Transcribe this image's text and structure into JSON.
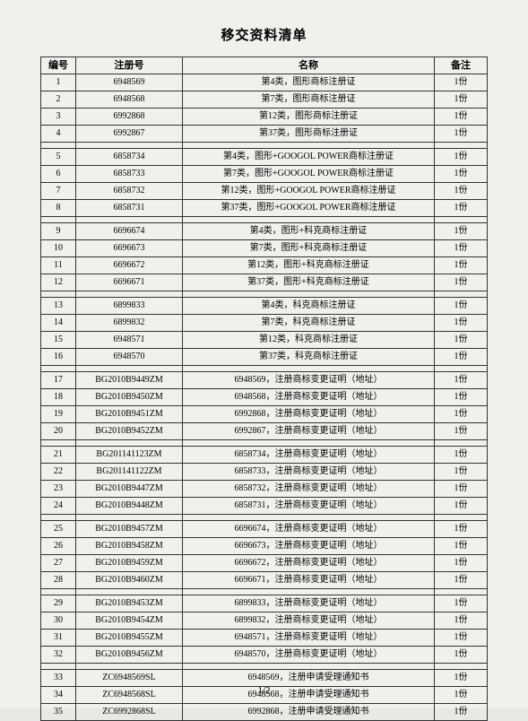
{
  "title": "移交资料清单",
  "headers": {
    "idx": "编号",
    "reg": "注册号",
    "name": "名称",
    "note": "备注"
  },
  "groups": [
    [
      {
        "idx": "1",
        "reg": "6948569",
        "name": "第4类，图形商标注册证",
        "note": "1份"
      },
      {
        "idx": "2",
        "reg": "6948568",
        "name": "第7类，图形商标注册证",
        "note": "1份"
      },
      {
        "idx": "3",
        "reg": "6992868",
        "name": "第12类，图形商标注册证",
        "note": "1份"
      },
      {
        "idx": "4",
        "reg": "6992867",
        "name": "第37类，图形商标注册证",
        "note": "1份"
      }
    ],
    [
      {
        "idx": "5",
        "reg": "6858734",
        "name": "第4类，图形+GOOGOL POWER商标注册证",
        "note": "1份"
      },
      {
        "idx": "6",
        "reg": "6858733",
        "name": "第7类，图形+GOOGOL POWER商标注册证",
        "note": "1份"
      },
      {
        "idx": "7",
        "reg": "6858732",
        "name": "第12类，图形+GOOGOL POWER商标注册证",
        "note": "1份"
      },
      {
        "idx": "8",
        "reg": "6858731",
        "name": "第37类，图形+GOOGOL POWER商标注册证",
        "note": "1份"
      }
    ],
    [
      {
        "idx": "9",
        "reg": "6696674",
        "name": "第4类，图形+科克商标注册证",
        "note": "1份"
      },
      {
        "idx": "10",
        "reg": "6696673",
        "name": "第7类，图形+科克商标注册证",
        "note": "1份"
      },
      {
        "idx": "11",
        "reg": "6696672",
        "name": "第12类，图形+科克商标注册证",
        "note": "1份"
      },
      {
        "idx": "12",
        "reg": "6696671",
        "name": "第37类，图形+科克商标注册证",
        "note": "1份"
      }
    ],
    [
      {
        "idx": "13",
        "reg": "6899833",
        "name": "第4类，科克商标注册证",
        "note": "1份"
      },
      {
        "idx": "14",
        "reg": "6899832",
        "name": "第7类，科克商标注册证",
        "note": "1份"
      },
      {
        "idx": "15",
        "reg": "6948571",
        "name": "第12类，科克商标注册证",
        "note": "1份"
      },
      {
        "idx": "16",
        "reg": "6948570",
        "name": "第37类，科克商标注册证",
        "note": "1份"
      }
    ],
    [
      {
        "idx": "17",
        "reg": "BG2010B9449ZM",
        "name": "6948569，注册商标变更证明（地址）",
        "note": "1份"
      },
      {
        "idx": "18",
        "reg": "BG2010B9450ZM",
        "name": "6948568，注册商标变更证明（地址）",
        "note": "1份"
      },
      {
        "idx": "19",
        "reg": "BG2010B9451ZM",
        "name": "6992868，注册商标变更证明（地址）",
        "note": "1份"
      },
      {
        "idx": "20",
        "reg": "BG2010B9452ZM",
        "name": "6992867，注册商标变更证明（地址）",
        "note": "1份"
      }
    ],
    [
      {
        "idx": "21",
        "reg": "BG201141123ZM",
        "name": "6858734，注册商标变更证明（地址）",
        "note": "1份"
      },
      {
        "idx": "22",
        "reg": "BG201141122ZM",
        "name": "6858733，注册商标变更证明（地址）",
        "note": "1份"
      },
      {
        "idx": "23",
        "reg": "BG2010B9447ZM",
        "name": "6858732，注册商标变更证明（地址）",
        "note": "1份"
      },
      {
        "idx": "24",
        "reg": "BG2010B9448ZM",
        "name": "6858731，注册商标变更证明（地址）",
        "note": "1份"
      }
    ],
    [
      {
        "idx": "25",
        "reg": "BG2010B9457ZM",
        "name": "6696674，注册商标变更证明（地址）",
        "note": "1份"
      },
      {
        "idx": "26",
        "reg": "BG2010B9458ZM",
        "name": "6696673，注册商标变更证明（地址）",
        "note": "1份"
      },
      {
        "idx": "27",
        "reg": "BG2010B9459ZM",
        "name": "6696672，注册商标变更证明（地址）",
        "note": "1份"
      },
      {
        "idx": "28",
        "reg": "BG2010B9460ZM",
        "name": "6696671，注册商标变更证明（地址）",
        "note": "1份"
      }
    ],
    [
      {
        "idx": "29",
        "reg": "BG2010B9453ZM",
        "name": "6899833，注册商标变更证明（地址）",
        "note": "1份"
      },
      {
        "idx": "30",
        "reg": "BG2010B9454ZM",
        "name": "6899832，注册商标变更证明（地址）",
        "note": "1份"
      },
      {
        "idx": "31",
        "reg": "BG2010B9455ZM",
        "name": "6948571，注册商标变更证明（地址）",
        "note": "1份"
      },
      {
        "idx": "32",
        "reg": "BG2010B9456ZM",
        "name": "6948570，注册商标变更证明（地址）",
        "note": "1份"
      }
    ],
    [
      {
        "idx": "33",
        "reg": "ZC6948569SL",
        "name": "6948569，注册申请受理通知书",
        "note": "1份"
      },
      {
        "idx": "34",
        "reg": "ZC6948568SL",
        "name": "6948568，注册申请受理通知书",
        "note": "1份"
      },
      {
        "idx": "35",
        "reg": "ZC6992868SL",
        "name": "6992868，注册申请受理通知书",
        "note": "1份"
      }
    ]
  ],
  "footer": "1/2"
}
